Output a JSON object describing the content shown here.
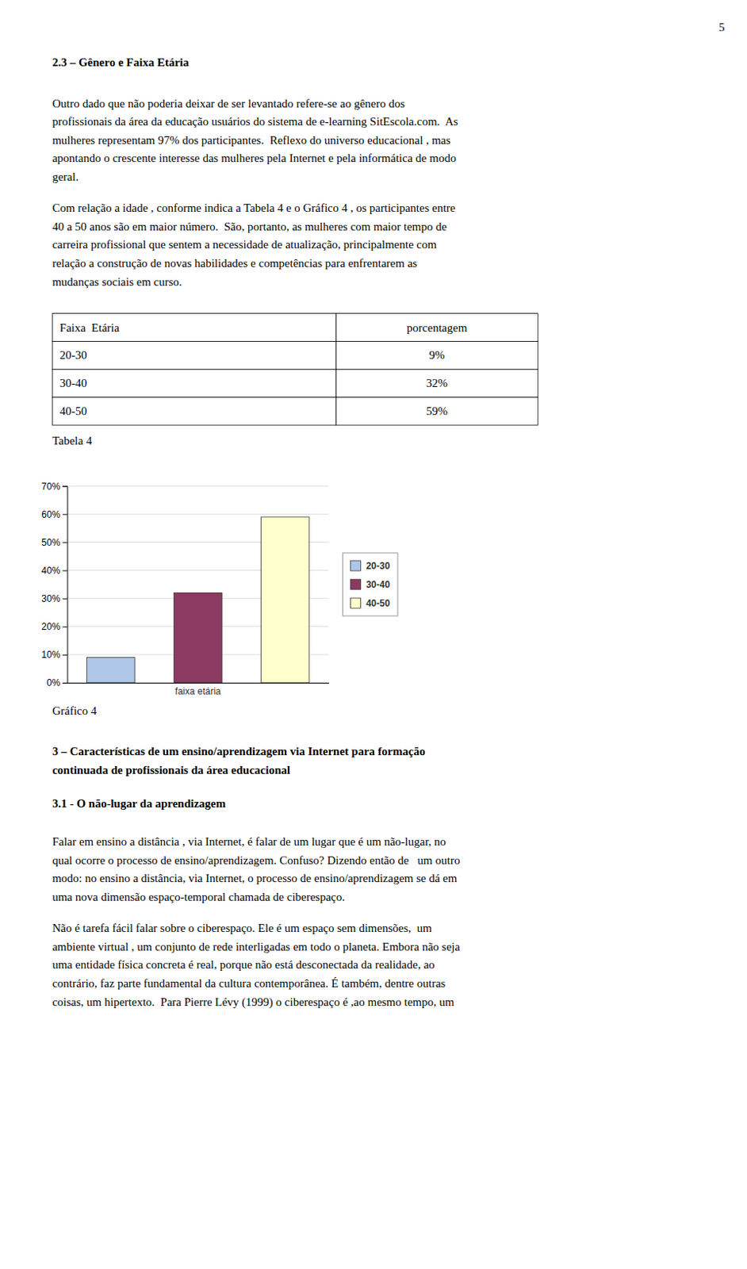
{
  "page_number": "5",
  "section_title": "2.3 – Gênero e Faixa Etária",
  "paragraphs": [
    [
      "Outro dado que não poderia deixar de ser levantado refere-se ao gênero dos",
      "profissionais da área da educação usuários do sistema de e-learning SitEscola.com.  As",
      "mulheres representam 97% dos participantes.  Reflexo do universo educacional , mas",
      "apontando o crescente interesse das mulheres pela Internet e pela informática de modo",
      "geral."
    ],
    [
      "Com relação a idade , conforme indica a Tabela 4 e o Gráfico 4 , os participantes entre",
      "40 a 50 anos são em maior número.  São, portanto, as mulheres com maior tempo de",
      "carreira profissional que sentem a necessidade de atualização, principalmente com",
      "relação a construção de novas habilidades e competências para enfrentarem as",
      "mudanças sociais em curso."
    ]
  ],
  "table": {
    "header": [
      "Faixa  Etária",
      "porcentagem"
    ],
    "rows": [
      [
        "20-30",
        "9%"
      ],
      [
        "30-40",
        "32%"
      ],
      [
        "40-50",
        "59%"
      ]
    ],
    "caption": "Tabela 4"
  },
  "chart_caption": "Gráfico 4",
  "section2_title": [
    "3 – Características de um ensino/aprendizagem via Internet para formação",
    "continuada de profissionais da área educacional"
  ],
  "section3_title": "3.1 - O não-lugar da aprendizagem",
  "paragraphs2": [
    [
      "Falar em ensino a distância , via Internet, é falar de um lugar que é um não-lugar, no",
      "qual ocorre o processo de ensino/aprendizagem. Confuso? Dizendo então de   um outro",
      "modo: no ensino a distância, via Internet, o processo de ensino/aprendizagem se dá em",
      "uma nova dimensão espaço-temporal chamada de ciberespaço."
    ],
    [
      "Não é tarefa fácil falar sobre o ciberespaço. Ele é um espaço sem dimensões,  um",
      "ambiente virtual , um conjunto de rede interligadas em todo o planeta. Embora não seja",
      "uma entidade física concreta é real, porque não está desconectada da realidade, ao",
      "contrário, faz parte fundamental da cultura contemporânea. É também, dentre outras",
      "coisas, um hipertexto.  Para Pierre Lévy (1999) o ciberespaço é ,ao mesmo tempo, um"
    ]
  ],
  "chart_data": {
    "type": "bar",
    "xlabel": "faixa etária",
    "categories": [
      "20-30",
      "30-40",
      "40-50"
    ],
    "values": [
      9,
      32,
      59
    ],
    "colors": [
      "#aec6e8",
      "#8b3a62",
      "#ffffcc"
    ],
    "ylim": [
      0,
      70
    ],
    "yticks": [
      {
        "value": 0,
        "label": "0%"
      },
      {
        "value": 10,
        "label": "10%"
      },
      {
        "value": 20,
        "label": "20%"
      },
      {
        "value": 30,
        "label": "30%"
      },
      {
        "value": 40,
        "label": "40%"
      },
      {
        "value": 50,
        "label": "50%"
      },
      {
        "value": 60,
        "label": "60%"
      },
      {
        "value": 70,
        "label": "70%"
      }
    ],
    "grid": true,
    "legend": "right",
    "tick_labels": "y"
  }
}
